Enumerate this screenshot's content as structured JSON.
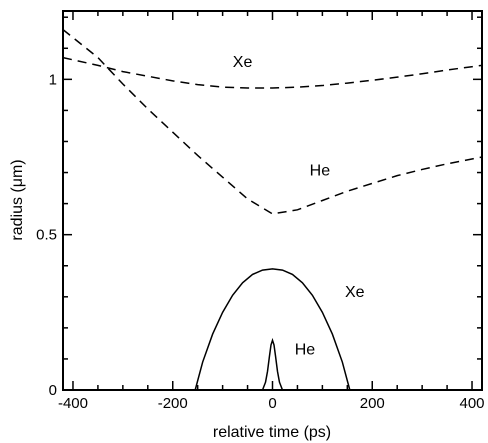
{
  "chart_data": {
    "type": "line",
    "title": "",
    "xlabel": "relative time (ps)",
    "ylabel": "radius (μm)",
    "xlim": [
      -420,
      420
    ],
    "ylim": [
      0,
      1.22
    ],
    "x_ticks": [
      -400,
      -200,
      0,
      200,
      400
    ],
    "x_tick_labels": [
      "-400",
      "-200",
      "0",
      "200",
      "400"
    ],
    "y_ticks": [
      0,
      0.5,
      1
    ],
    "y_tick_labels": [
      "0",
      "0.5",
      "1"
    ],
    "grid": false,
    "series": [
      {
        "name": "Xe",
        "style": "dashed",
        "x": [
          -420,
          -350,
          -300,
          -250,
          -200,
          -150,
          -100,
          -50,
          0,
          50,
          100,
          150,
          200,
          250,
          300,
          350,
          420
        ],
        "y": [
          1.07,
          1.045,
          1.025,
          1.01,
          0.995,
          0.983,
          0.975,
          0.972,
          0.972,
          0.975,
          0.98,
          0.988,
          0.997,
          1.007,
          1.018,
          1.03,
          1.045
        ]
      },
      {
        "name": "He",
        "style": "dashed",
        "x": [
          -420,
          -350,
          -300,
          -250,
          -200,
          -150,
          -100,
          -50,
          0,
          50,
          100,
          150,
          200,
          250,
          300,
          350,
          420
        ],
        "y": [
          1.16,
          1.07,
          0.985,
          0.905,
          0.83,
          0.755,
          0.685,
          0.615,
          0.567,
          0.58,
          0.61,
          0.64,
          0.665,
          0.69,
          0.71,
          0.728,
          0.75
        ]
      },
      {
        "name": "Xe",
        "style": "solid",
        "x": [
          -155,
          -140,
          -120,
          -100,
          -80,
          -60,
          -40,
          -20,
          0,
          20,
          40,
          60,
          80,
          100,
          120,
          140,
          155
        ],
        "y": [
          0,
          0.09,
          0.18,
          0.25,
          0.305,
          0.345,
          0.372,
          0.386,
          0.39,
          0.386,
          0.372,
          0.345,
          0.305,
          0.25,
          0.18,
          0.09,
          0
        ]
      },
      {
        "name": "He",
        "style": "solid",
        "x": [
          -20,
          -14,
          -10,
          -6,
          -3,
          0,
          3,
          6,
          10,
          14,
          20
        ],
        "y": [
          0,
          0.025,
          0.06,
          0.11,
          0.145,
          0.16,
          0.145,
          0.11,
          0.06,
          0.025,
          0
        ]
      }
    ],
    "annotations": [
      {
        "text": "Xe",
        "x": -60,
        "y": 1.04
      },
      {
        "text": "He",
        "x": 95,
        "y": 0.69
      },
      {
        "text": "Xe",
        "x": 165,
        "y": 0.3
      },
      {
        "text": "He",
        "x": 65,
        "y": 0.115
      }
    ]
  }
}
